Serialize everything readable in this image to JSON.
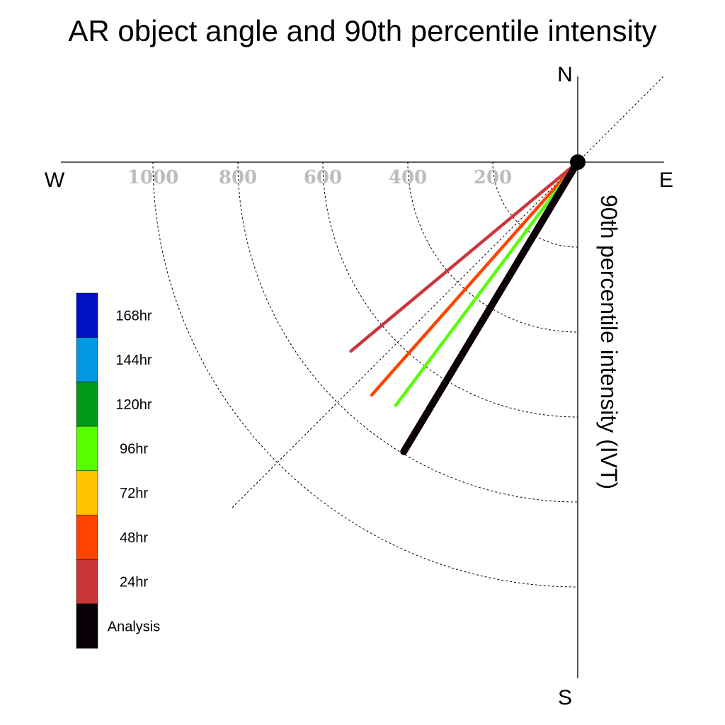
{
  "chart_data": {
    "type": "polar-vector",
    "title": "AR object angle and 90th percentile intensity",
    "ylabel": "90th percentile intensity (IVT)",
    "compass": {
      "north": "N",
      "south": "S",
      "east": "E",
      "west": "W"
    },
    "rings": [
      200,
      400,
      600,
      800,
      1000
    ],
    "ring_labels": [
      "200",
      "400",
      "600",
      "800",
      "1000"
    ],
    "rmax": 1150,
    "reference_angle_deg": 45,
    "series": [
      {
        "name": "24hr",
        "angle_deg": 219.8,
        "value": 695,
        "color": "#c9373b"
      },
      {
        "name": "48hr",
        "angle_deg": 228.5,
        "value": 732,
        "color": "#ff4400"
      },
      {
        "name": "96hr",
        "angle_deg": 233.2,
        "value": 715,
        "color": "#55ff00"
      },
      {
        "name": "Analysis",
        "angle_deg": 239.0,
        "value": 795,
        "color": "#0a0008"
      }
    ],
    "legend": [
      {
        "name": "168hr",
        "color": "#0010c4"
      },
      {
        "name": "144hr",
        "color": "#0098e0"
      },
      {
        "name": "120hr",
        "color": "#009a17"
      },
      {
        "name": "96hr",
        "color": "#55ff00"
      },
      {
        "name": "72hr",
        "color": "#ffc300"
      },
      {
        "name": "48hr",
        "color": "#ff4400"
      },
      {
        "name": "24hr",
        "color": "#c9373b"
      },
      {
        "name": "Analysis",
        "color": "#0a0008"
      }
    ]
  }
}
